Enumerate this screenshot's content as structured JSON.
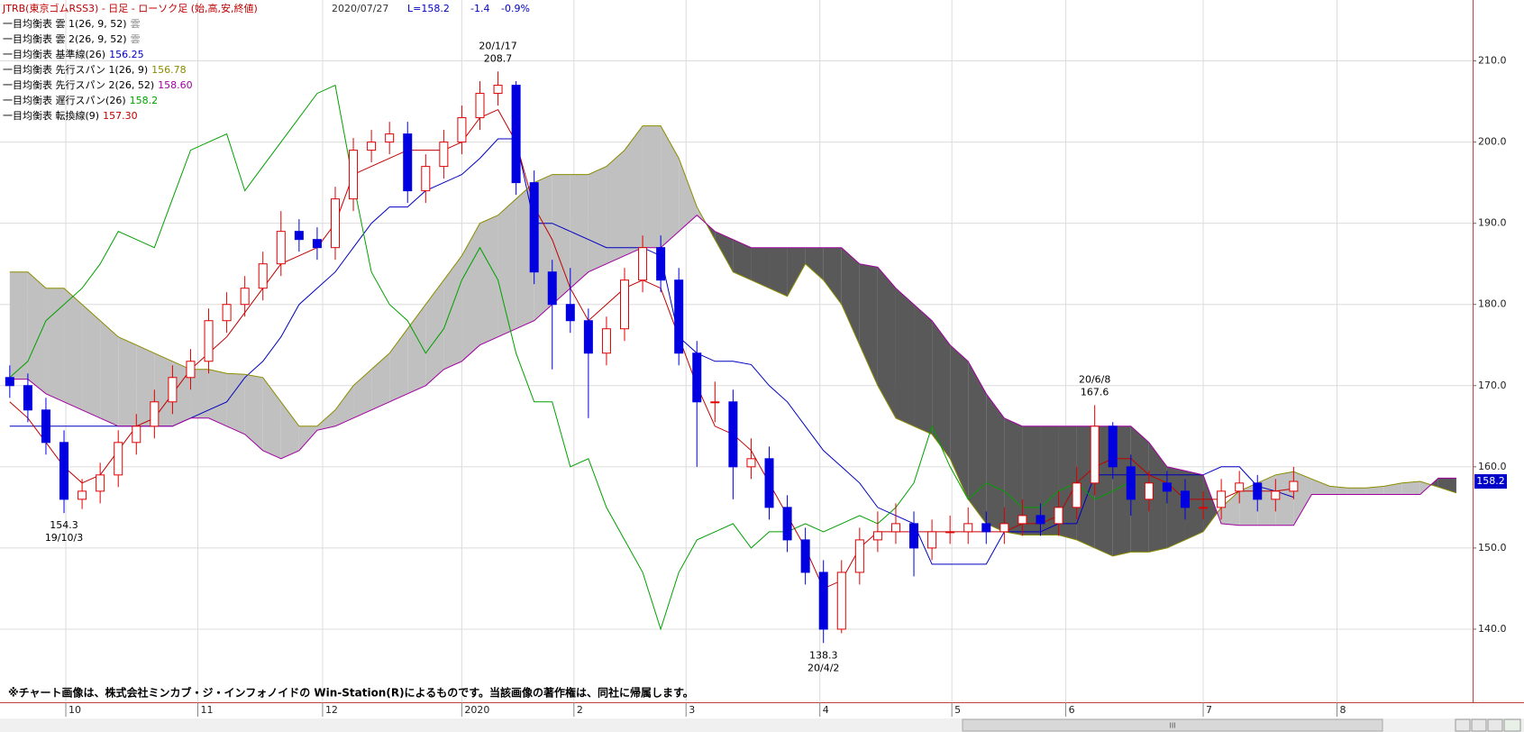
{
  "header": {
    "title": "JTRB(東京ゴムRSS3) - 日足 - ローソク足 (始,高,安,終値)",
    "date": "2020/07/27",
    "last": "L=158.2",
    "change": "-1.4",
    "change_pct": "-0.9%"
  },
  "footer_note": "※チャート画像は、株式会社ミンカブ・ジ・インフォノイドの Win-Station(R)によるものです。当該画像の著作権は、同社に帰属します。",
  "scrollbar_grip": "III",
  "chart_data": {
    "type": "candlestick",
    "ylim": [
      131,
      217.5
    ],
    "yticks": [
      {
        "value": 140,
        "label": "140.0"
      },
      {
        "value": 150,
        "label": "150.0"
      },
      {
        "value": 160,
        "label": "160.0"
      },
      {
        "value": 170,
        "label": "170.0"
      },
      {
        "value": 180,
        "label": "180.0"
      },
      {
        "value": 190,
        "label": "190.0"
      },
      {
        "value": 200,
        "label": "200.0"
      },
      {
        "value": 210,
        "label": "210.0"
      }
    ],
    "xlim": [
      -0.54,
      80.9
    ],
    "xticks": [
      {
        "value": 3.1,
        "label": "10"
      },
      {
        "value": 10.4,
        "label": "11"
      },
      {
        "value": 17.3,
        "label": "12"
      },
      {
        "value": 25.0,
        "label": "2020"
      },
      {
        "value": 31.2,
        "label": "2"
      },
      {
        "value": 37.4,
        "label": "3"
      },
      {
        "value": 44.8,
        "label": "4"
      },
      {
        "value": 52.1,
        "label": "5"
      },
      {
        "value": 58.4,
        "label": "6"
      },
      {
        "value": 66.0,
        "label": "7"
      },
      {
        "value": 73.4,
        "label": "8"
      }
    ],
    "grid": true,
    "candles": {
      "up_color": "#e00000",
      "down_color": "#0000e0",
      "open": [
        171,
        170,
        167,
        163,
        156,
        157,
        159,
        163,
        165,
        168,
        171,
        173,
        178,
        180,
        182,
        185,
        189,
        188,
        187,
        193,
        199,
        200,
        201,
        194,
        197,
        200,
        203,
        206,
        207,
        195,
        184,
        180,
        178,
        174,
        177,
        183,
        187,
        183,
        174,
        168,
        168,
        160,
        161,
        155,
        151,
        147,
        140,
        147,
        151,
        152,
        153,
        150,
        152,
        152,
        153,
        152,
        153,
        154,
        153,
        155,
        158,
        165,
        160,
        156,
        158,
        157,
        155,
        155,
        157,
        158,
        156,
        157
      ],
      "high": [
        172.5,
        171.5,
        168.5,
        164.5,
        158.5,
        160.5,
        164.5,
        166.5,
        169.5,
        172.5,
        174.5,
        179.5,
        181.5,
        183.5,
        186.5,
        191.5,
        190.5,
        189.5,
        194.5,
        200.5,
        201.5,
        202.5,
        202.5,
        198.5,
        201.5,
        204.5,
        207.5,
        208.7,
        207.5,
        196.5,
        185.5,
        184.5,
        179.5,
        178.5,
        184.5,
        188.5,
        188.5,
        184.5,
        175.5,
        170.5,
        169.5,
        163.5,
        162.5,
        156.5,
        152.5,
        148.5,
        148.5,
        152.5,
        154.5,
        155.5,
        154.5,
        153.5,
        154,
        155,
        154.5,
        155,
        156,
        155.5,
        157,
        160,
        167.6,
        165.5,
        161.5,
        159.5,
        159.5,
        158.5,
        157,
        158.5,
        159.5,
        159,
        158.5,
        160
      ],
      "low": [
        168.5,
        165.5,
        161.5,
        154.3,
        154.8,
        155.5,
        157.5,
        161.5,
        163.5,
        166.5,
        169.5,
        171.5,
        176.5,
        178.5,
        180.5,
        183.5,
        186.5,
        185.5,
        185.5,
        191.5,
        197.5,
        198.5,
        192.5,
        192.5,
        195.5,
        198.5,
        201.5,
        204.5,
        193.5,
        182.5,
        172,
        176.5,
        166,
        172.5,
        175.5,
        181.5,
        181.5,
        172.5,
        160,
        165.5,
        156,
        158.5,
        153.5,
        149.5,
        145.5,
        138.3,
        139.5,
        145.5,
        149.5,
        150.5,
        146.5,
        148.5,
        150.5,
        150.5,
        150.5,
        150.5,
        151.5,
        151.5,
        151.5,
        153.5,
        156.5,
        158.5,
        154,
        154.5,
        155.5,
        153.5,
        153.5,
        153.5,
        155.5,
        154.5,
        154.5,
        156
      ],
      "close": [
        170,
        167,
        163,
        156,
        157,
        159,
        163,
        165,
        168,
        171,
        173,
        178,
        180,
        182,
        185,
        189,
        188,
        187,
        193,
        199,
        200,
        201,
        194,
        197,
        200,
        203,
        206,
        207,
        195,
        184,
        180,
        178,
        174,
        177,
        183,
        187,
        183,
        174,
        168,
        168,
        160,
        161,
        155,
        151,
        147,
        140,
        147,
        151,
        152,
        153,
        150,
        152,
        152,
        153,
        152,
        153,
        154,
        153,
        155,
        158,
        165,
        160,
        156,
        158,
        157,
        155,
        155,
        157,
        158,
        156,
        157,
        158.2
      ]
    },
    "cloud": [
      {
        "name": "一目均衡表 雲 1(26, 9, 52)",
        "label": "雲",
        "color": "#c0c0c0"
      },
      {
        "name": "一目均衡表 雲 2(26, 9, 52)",
        "label": "雲",
        "color": "#595959"
      }
    ],
    "series": [
      {
        "name": "一目均衡表 基準線(26)",
        "last_label": "156.25",
        "color": "#0000c0",
        "role": "kijun",
        "values": [
          165,
          165,
          165,
          165,
          165,
          165,
          165,
          165,
          165,
          165,
          166,
          167,
          168,
          171,
          173,
          176,
          180,
          182,
          184,
          187,
          190,
          192,
          192,
          194,
          195,
          196,
          198,
          200.4,
          200.4,
          190,
          190,
          189,
          188,
          187,
          187,
          187,
          186,
          176,
          174,
          173,
          173,
          172.6,
          170,
          168,
          165,
          162,
          160,
          158,
          155,
          154,
          153,
          148,
          148,
          148,
          148,
          152,
          152,
          152,
          153,
          153,
          159,
          159,
          159,
          159,
          159,
          159,
          159,
          160,
          160,
          157.6,
          157,
          156.25,
          null,
          null,
          null,
          null,
          null,
          null,
          null,
          null,
          null
        ]
      },
      {
        "name": "一目均衡表 先行スパン 1(26, 9)",
        "last_label": "156.78",
        "color": "#8b8b00",
        "role": "span_a",
        "values": [
          184,
          184,
          182,
          182,
          180,
          178,
          176,
          175,
          174,
          173,
          172,
          172,
          171.5,
          171.4,
          171,
          168,
          165,
          165,
          167,
          170,
          172,
          174,
          177,
          180,
          183,
          186,
          190,
          191,
          193,
          195,
          196,
          196,
          196,
          197,
          199,
          202,
          202,
          198,
          192,
          188,
          184,
          183,
          182,
          181,
          185,
          183,
          180,
          175,
          170,
          166,
          165,
          164,
          161,
          156,
          153,
          152,
          151.6,
          151.6,
          151.6,
          151,
          150,
          149,
          149.5,
          149.5,
          150,
          151,
          152,
          155,
          157,
          158,
          159,
          159.4,
          158.5,
          157.6,
          157.4,
          157.4,
          157.6,
          158,
          158.2,
          157.5,
          156.78
        ]
      },
      {
        "name": "一目均衡表 先行スパン 2(26, 52)",
        "last_label": "158.60",
        "color": "#a000a0",
        "role": "span_b",
        "values": [
          170.8,
          170.8,
          169,
          168,
          167,
          166,
          165,
          165,
          165,
          165,
          166,
          166,
          165,
          164,
          162,
          161,
          162,
          164.5,
          165,
          166,
          167,
          168,
          169,
          170,
          172,
          173,
          175,
          176,
          177,
          178,
          180,
          182,
          184,
          185,
          186,
          187,
          187,
          189,
          191,
          189,
          188,
          187,
          187,
          187,
          187,
          187,
          187,
          185,
          184.6,
          182,
          180,
          178,
          175,
          173,
          169,
          166,
          165,
          165,
          165,
          165,
          165,
          165,
          165,
          163,
          160,
          159.5,
          159,
          153,
          152.8,
          152.8,
          152.8,
          152.8,
          156.6,
          156.6,
          156.6,
          156.6,
          156.6,
          156.6,
          156.6,
          158.6,
          158.6
        ]
      },
      {
        "name": "一目均衡表 遅行スパン(26)",
        "last_label": "158.2",
        "color": "#00a000",
        "role": "chikou",
        "values": [
          171,
          173,
          178,
          180,
          182,
          185,
          189,
          188,
          187,
          193,
          199,
          200,
          201,
          194,
          197,
          200,
          203,
          206,
          207,
          195,
          184,
          180,
          178,
          174,
          177,
          183,
          187,
          183,
          174,
          168,
          168,
          160,
          161,
          155,
          151,
          147,
          140,
          147,
          151,
          152,
          153,
          150,
          152,
          152,
          153,
          152,
          153,
          154,
          153,
          155,
          158,
          165,
          160,
          156,
          158,
          157,
          155,
          155,
          157,
          158,
          156,
          157,
          158.2,
          null,
          null,
          null,
          null,
          null,
          null,
          null,
          null,
          null,
          null,
          null,
          null,
          null,
          null,
          null,
          null,
          null,
          null
        ]
      },
      {
        "name": "一目均衡表 転換線(9)",
        "last_label": "157.30",
        "color": "#c00000",
        "role": "tenkan",
        "values": [
          168,
          166,
          163,
          160,
          158,
          159,
          162,
          165,
          166,
          169,
          172,
          174,
          176,
          179,
          182,
          185,
          186,
          187,
          190,
          196,
          197,
          198,
          199,
          199,
          199,
          200,
          203,
          204,
          200,
          192,
          188,
          182,
          178,
          180,
          182,
          183,
          182,
          176,
          170,
          165,
          164,
          162,
          158,
          154,
          150,
          145,
          146,
          150,
          152,
          152,
          152,
          152,
          152,
          152,
          152,
          152,
          153,
          153,
          154,
          158,
          160,
          161,
          161,
          159,
          158,
          156,
          156,
          156,
          157,
          157,
          157,
          157.3,
          null,
          null,
          null,
          null,
          null,
          null,
          null,
          null,
          null
        ]
      }
    ],
    "annotations": [
      {
        "value": 154.3,
        "date": "19/10/3"
      },
      {
        "value": 208.7,
        "date": "20/1/17"
      },
      {
        "value": 138.3,
        "date": "20/4/2"
      },
      {
        "value": 167.6,
        "date": "20/6/8"
      }
    ],
    "last_price": 158.2
  }
}
